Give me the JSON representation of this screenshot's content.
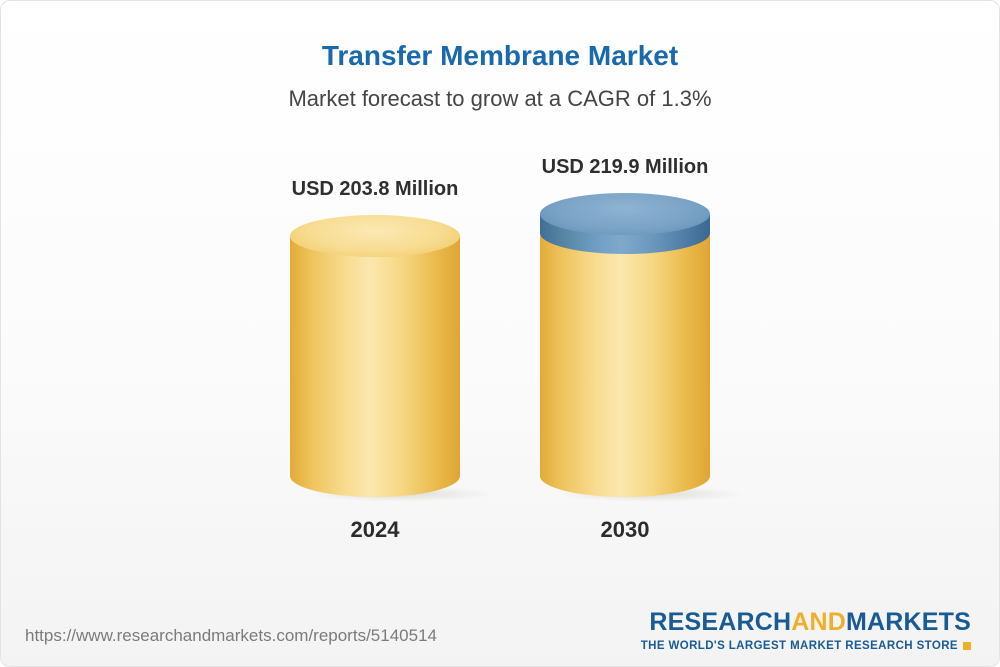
{
  "header": {
    "title": "Transfer Membrane Market",
    "subtitle": "Market forecast to grow at a CAGR of 1.3%"
  },
  "chart_data": {
    "type": "bar",
    "title": "Transfer Membrane Market",
    "subtitle": "Market forecast to grow at a CAGR of 1.3%",
    "unit": "USD Million",
    "cagr": "1.3%",
    "categories": [
      "2024",
      "2030"
    ],
    "values": [
      203.8,
      219.9
    ],
    "bars": [
      {
        "category": "2024",
        "value": 203.8,
        "label": "USD 203.8 Million",
        "color": "#F2C75F"
      },
      {
        "category": "2030",
        "value": 219.9,
        "label": "USD 219.9 Million",
        "color": "#F2C75F",
        "cap_color": "#5D8FB9"
      }
    ],
    "legend": false,
    "grid": false
  },
  "footer": {
    "url": "https://www.researchandmarkets.com/reports/5140514",
    "logo": {
      "research": "RESEARCH",
      "and": "AND",
      "markets": "MARKETS",
      "tagline": "THE WORLD'S LARGEST MARKET RESEARCH STORE"
    }
  },
  "colors": {
    "title_blue": "#1A69AC",
    "bar_yellow": "#F2C75F",
    "cap_blue": "#5D8FB9",
    "logo_blue": "#1A5B94",
    "logo_yellow": "#EFAF2B"
  }
}
